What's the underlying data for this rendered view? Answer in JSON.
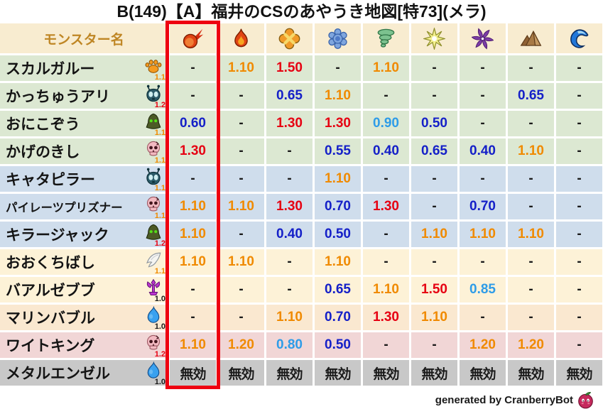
{
  "title": "B(149)【A】福井のCSのあやうき地図[特73](メラ)",
  "footer": {
    "credit": "generated by CranberryBot"
  },
  "colors": {
    "header_bg": "#f8ecd0",
    "header_text": "#bf8624",
    "accent_red": "#ee0010",
    "value_neutral": "#1a1a1a",
    "value_down": "#1520c8",
    "value_down_light": "#2e9ce8",
    "value_up": "#f08a00",
    "value_up_strong": "#e60012",
    "row_bg": {
      "green": "#dce8d2",
      "blue": "#cfddec",
      "cream": "#fdf2d7",
      "peach": "#fae8d0",
      "pink": "#f1d6d6",
      "gray": "#c8c8c8"
    },
    "mult": {
      "black": "#1a1a1a",
      "orange": "#f08a00",
      "red": "#e60012"
    }
  },
  "chart_data": {
    "type": "table",
    "title": "B(149)【A】福井のCSのあやうき地図[特73](メラ)",
    "name_header": "モンスター名",
    "element_icons": [
      "meteor",
      "flame",
      "explosion",
      "snowflake",
      "tornado",
      "spark",
      "pinwheel",
      "mountain",
      "wave"
    ],
    "highlighted_column_index": 0,
    "rows": [
      {
        "monster": "スカルガルー",
        "icon": "paw",
        "multiplier": "1.1",
        "multiplier_color": "orange",
        "bg": "green",
        "values": [
          "-",
          "1.10",
          "1.50",
          "-",
          "1.10",
          "-",
          "-",
          "-",
          "-"
        ]
      },
      {
        "monster": "かっちゅうアリ",
        "icon": "ant",
        "multiplier": "1.2",
        "multiplier_color": "red",
        "bg": "green",
        "values": [
          "-",
          "-",
          "0.65",
          "1.10",
          "-",
          "-",
          "-",
          "0.65",
          "-"
        ]
      },
      {
        "monster": "おにこぞう",
        "icon": "hood",
        "multiplier": "1.1",
        "multiplier_color": "orange",
        "bg": "green",
        "values": [
          "0.60",
          "-",
          "1.30",
          "1.30",
          "0.90",
          "0.50",
          "-",
          "-",
          "-"
        ]
      },
      {
        "monster": "かげのきし",
        "icon": "skull",
        "multiplier": "1.1",
        "multiplier_color": "orange",
        "bg": "green",
        "values": [
          "1.30",
          "-",
          "-",
          "0.55",
          "0.40",
          "0.65",
          "0.40",
          "1.10",
          "-"
        ]
      },
      {
        "monster": "キャタピラー",
        "icon": "ant",
        "multiplier": "1.1",
        "multiplier_color": "orange",
        "bg": "blue",
        "values": [
          "-",
          "-",
          "-",
          "1.10",
          "-",
          "-",
          "-",
          "-",
          "-"
        ]
      },
      {
        "monster": "パイレーツプリズナー",
        "icon": "skull",
        "multiplier": "1.1",
        "multiplier_color": "orange",
        "bg": "blue",
        "small_name": true,
        "values": [
          "1.10",
          "1.10",
          "1.30",
          "0.70",
          "1.30",
          "-",
          "0.70",
          "-",
          "-"
        ]
      },
      {
        "monster": "キラージャック",
        "icon": "hood",
        "multiplier": "1.2",
        "multiplier_color": "red",
        "bg": "blue",
        "values": [
          "1.10",
          "-",
          "0.40",
          "0.50",
          "-",
          "1.10",
          "1.10",
          "1.10",
          "-"
        ]
      },
      {
        "monster": "おおくちばし",
        "icon": "wing",
        "multiplier": "1.1",
        "multiplier_color": "orange",
        "bg": "cream",
        "values": [
          "1.10",
          "1.10",
          "-",
          "1.10",
          "-",
          "-",
          "-",
          "-",
          "-"
        ]
      },
      {
        "monster": "バアルゼブブ",
        "icon": "trident",
        "multiplier": "1.0",
        "multiplier_color": "black",
        "bg": "cream",
        "values": [
          "-",
          "-",
          "-",
          "0.65",
          "1.10",
          "1.50",
          "0.85",
          "-",
          "-"
        ]
      },
      {
        "monster": "マリンバブル",
        "icon": "slime",
        "multiplier": "1.0",
        "multiplier_color": "black",
        "bg": "peach",
        "values": [
          "-",
          "-",
          "1.10",
          "0.70",
          "1.30",
          "1.10",
          "-",
          "-",
          "-"
        ]
      },
      {
        "monster": "ワイトキング",
        "icon": "skull",
        "multiplier": "1.2",
        "multiplier_color": "red",
        "bg": "pink",
        "values": [
          "1.10",
          "1.20",
          "0.80",
          "0.50",
          "-",
          "-",
          "1.20",
          "1.20",
          "-"
        ]
      },
      {
        "monster": "メタルエンゼル",
        "icon": "slime",
        "multiplier": "1.0",
        "multiplier_color": "black",
        "bg": "gray",
        "values": [
          "無効",
          "無効",
          "無効",
          "無効",
          "無効",
          "無効",
          "無効",
          "無効",
          "無効"
        ]
      }
    ]
  }
}
